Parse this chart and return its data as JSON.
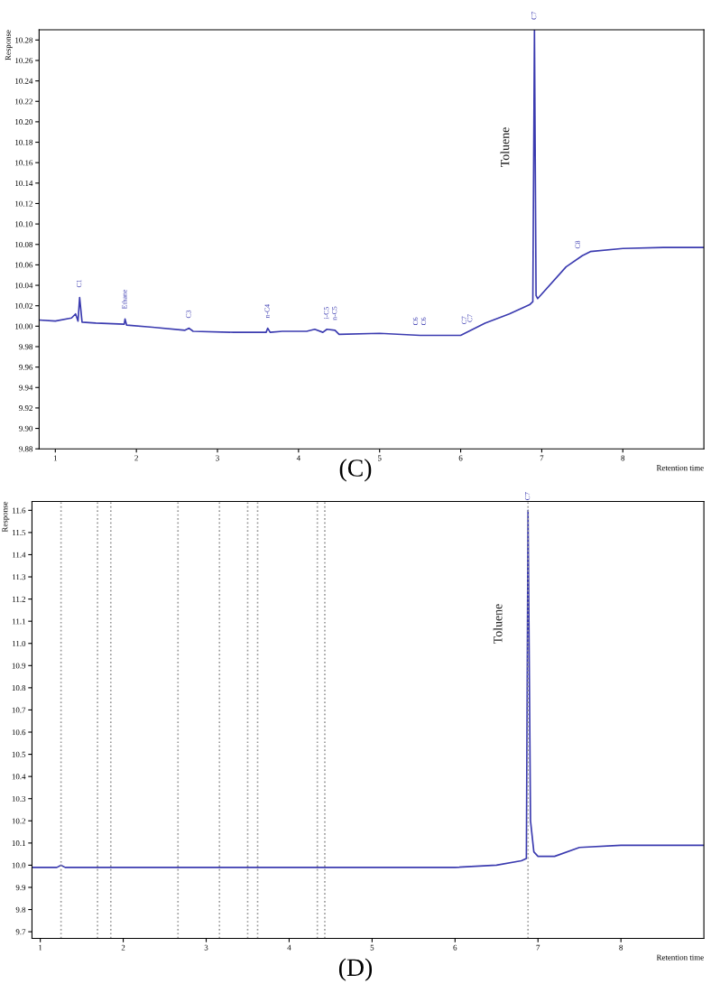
{
  "chart_data": [
    {
      "type": "line",
      "xlabel": "Retention time",
      "ylabel": "Response",
      "grid": false,
      "legend": false,
      "marker": "none",
      "line_style": "solid",
      "xlim": [
        0.8,
        9.0
      ],
      "xticks": [
        1,
        2,
        3,
        4,
        5,
        6,
        7,
        8
      ],
      "ylim": [
        9.88,
        10.29
      ],
      "yticks": [
        {
          "value": 9.88,
          "label": "9.88"
        },
        {
          "value": 9.9,
          "label": "9.90"
        },
        {
          "value": 9.92,
          "label": "9.92"
        },
        {
          "value": 9.94,
          "label": "9.94"
        },
        {
          "value": 9.96,
          "label": "9.96"
        },
        {
          "value": 9.98,
          "label": "9.98"
        },
        {
          "value": 10.0,
          "label": "10.00"
        },
        {
          "value": 10.02,
          "label": "10.02"
        },
        {
          "value": 10.04,
          "label": "10.04"
        },
        {
          "value": 10.06,
          "label": "10.06"
        },
        {
          "value": 10.08,
          "label": "10.08"
        },
        {
          "value": 10.1,
          "label": "10.10"
        },
        {
          "value": 10.12,
          "label": "10.12"
        },
        {
          "value": 10.14,
          "label": "10.14"
        },
        {
          "value": 10.16,
          "label": "10.16"
        },
        {
          "value": 10.18,
          "label": "10.18"
        },
        {
          "value": 10.2,
          "label": "10.20"
        },
        {
          "value": 10.22,
          "label": "10.22"
        },
        {
          "value": 10.24,
          "label": "10.24"
        },
        {
          "value": 10.26,
          "label": "10.26"
        },
        {
          "value": 10.28,
          "label": "10.28"
        }
      ],
      "series": [
        {
          "color": "#3b3bb0",
          "x": [
            0.8,
            1.0,
            1.2,
            1.25,
            1.28,
            1.3,
            1.33,
            1.5,
            1.85,
            1.86,
            1.88,
            2.2,
            2.6,
            2.65,
            2.7,
            3.2,
            3.6,
            3.62,
            3.65,
            3.8,
            4.1,
            4.2,
            4.3,
            4.35,
            4.45,
            4.5,
            5.0,
            5.5,
            6.0,
            6.3,
            6.6,
            6.85,
            6.89,
            6.91,
            6.93,
            6.95,
            7.3,
            7.5,
            7.6,
            8.0,
            8.5,
            9.0
          ],
          "values": [
            10.006,
            10.005,
            10.008,
            10.012,
            10.005,
            10.028,
            10.004,
            10.003,
            10.002,
            10.007,
            10.001,
            9.999,
            9.996,
            9.998,
            9.995,
            9.994,
            9.994,
            9.998,
            9.994,
            9.995,
            9.995,
            9.997,
            9.994,
            9.997,
            9.996,
            9.992,
            9.993,
            9.991,
            9.991,
            10.003,
            10.012,
            10.021,
            10.024,
            10.29,
            10.03,
            10.027,
            10.058,
            10.069,
            10.073,
            10.076,
            10.077,
            10.077
          ]
        }
      ],
      "annotations": [
        {
          "text": "C1",
          "x": 1.3,
          "y": 10.028
        },
        {
          "text": "Ethane",
          "x": 1.86,
          "y": 10.007
        },
        {
          "text": "C3",
          "x": 2.65,
          "y": 9.998
        },
        {
          "text": "n-C4",
          "x": 3.62,
          "y": 9.998
        },
        {
          "text": "i-C5",
          "x": 4.35,
          "y": 9.997
        },
        {
          "text": "n-C5",
          "x": 4.45,
          "y": 9.996
        },
        {
          "text": "C6",
          "x": 5.45,
          "y": 9.991
        },
        {
          "text": "C6",
          "x": 5.55,
          "y": 9.991
        },
        {
          "text": "C7",
          "x": 6.05,
          "y": 9.992
        },
        {
          "text": "C7",
          "x": 6.12,
          "y": 9.994
        },
        {
          "text": "C7",
          "x": 6.91,
          "y": 10.29
        },
        {
          "text": "C8",
          "x": 7.45,
          "y": 10.066
        },
        "Toluene",
        "(C)"
      ]
    },
    {
      "type": "line",
      "xlabel": "Retention time",
      "ylabel": "Response",
      "grid": false,
      "legend": false,
      "marker": "none",
      "line_style": "solid",
      "xlim": [
        0.9,
        9.0
      ],
      "xticks": [
        1,
        2,
        3,
        4,
        5,
        6,
        7,
        8
      ],
      "ylim": [
        9.67,
        11.64
      ],
      "yticks": [
        {
          "value": 9.7,
          "label": "9.7"
        },
        {
          "value": 9.8,
          "label": "9.8"
        },
        {
          "value": 9.9,
          "label": "9.9"
        },
        {
          "value": 10.0,
          "label": "10.0"
        },
        {
          "value": 10.1,
          "label": "10.1"
        },
        {
          "value": 10.2,
          "label": "10.2"
        },
        {
          "value": 10.3,
          "label": "10.3"
        },
        {
          "value": 10.4,
          "label": "10.4"
        },
        {
          "value": 10.5,
          "label": "10.5"
        },
        {
          "value": 10.6,
          "label": "10.6"
        },
        {
          "value": 10.7,
          "label": "10.7"
        },
        {
          "value": 10.8,
          "label": "10.8"
        },
        {
          "value": 10.9,
          "label": "10.9"
        },
        {
          "value": 11.0,
          "label": "11.0"
        },
        {
          "value": 11.1,
          "label": "11.1"
        },
        {
          "value": 11.2,
          "label": "11.2"
        },
        {
          "value": 11.3,
          "label": "11.3"
        },
        {
          "value": 11.4,
          "label": "11.4"
        },
        {
          "value": 11.5,
          "label": "11.5"
        },
        {
          "value": 11.6,
          "label": "11.6"
        }
      ],
      "series": [
        {
          "color": "#3b3bb0",
          "x": [
            0.9,
            1.2,
            1.25,
            1.3,
            2.0,
            3.0,
            4.0,
            4.5,
            5.0,
            6.0,
            6.5,
            6.8,
            6.86,
            6.88,
            6.91,
            6.95,
            7.0,
            7.2,
            7.5,
            8.0,
            9.0
          ],
          "values": [
            9.99,
            9.99,
            10.0,
            9.99,
            9.99,
            9.99,
            9.99,
            9.99,
            9.99,
            9.99,
            10.0,
            10.02,
            10.03,
            11.6,
            10.2,
            10.06,
            10.04,
            10.04,
            10.08,
            10.09,
            10.09
          ]
        }
      ],
      "ref_lines": [
        {
          "axis": "x",
          "value": 1.25,
          "color": "#999999",
          "line_style": "dotted"
        },
        {
          "axis": "x",
          "value": 1.69,
          "color": "#999999",
          "line_style": "dotted"
        },
        {
          "axis": "x",
          "value": 1.85,
          "color": "#999999",
          "line_style": "dotted"
        },
        {
          "axis": "x",
          "value": 2.66,
          "color": "#999999",
          "line_style": "dotted"
        },
        {
          "axis": "x",
          "value": 3.16,
          "color": "#999999",
          "line_style": "dotted"
        },
        {
          "axis": "x",
          "value": 3.5,
          "color": "#999999",
          "line_style": "dotted"
        },
        {
          "axis": "x",
          "value": 3.62,
          "color": "#999999",
          "line_style": "dotted"
        },
        {
          "axis": "x",
          "value": 4.34,
          "color": "#999999",
          "line_style": "dotted"
        },
        {
          "axis": "x",
          "value": 4.43,
          "color": "#999999",
          "line_style": "dotted"
        },
        {
          "axis": "x",
          "value": 6.88,
          "color": "#999999",
          "line_style": "dotted"
        }
      ],
      "annotations": [
        {
          "text": "C7",
          "x": 6.88,
          "y": 11.6
        },
        "Toluene",
        "(D)"
      ]
    }
  ]
}
